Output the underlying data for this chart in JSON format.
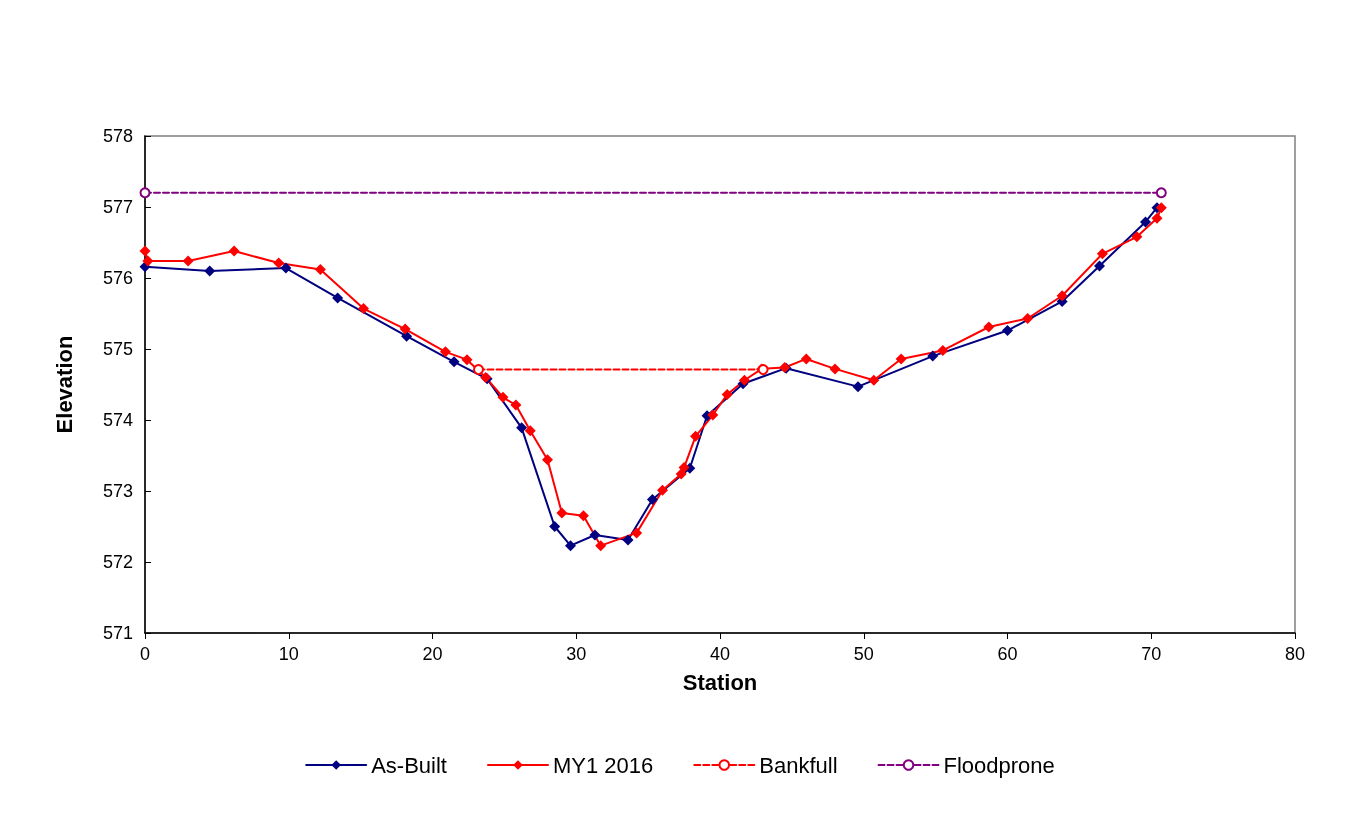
{
  "chart_data": {
    "type": "line",
    "xlabel": "Station",
    "ylabel": "Elevation",
    "xlim": [
      0,
      80
    ],
    "xticks": [
      0,
      10,
      20,
      30,
      40,
      50,
      60,
      70,
      80
    ],
    "ylim": [
      571,
      578
    ],
    "yticks": [
      571,
      572,
      573,
      574,
      575,
      576,
      577,
      578
    ],
    "grid": false,
    "legend": "bottom",
    "series": [
      {
        "name": "As-Built",
        "color": "#000080",
        "marker": "diamond",
        "line_style": "solid",
        "x": [
          0,
          4.5,
          9.8,
          13.4,
          18.2,
          21.5,
          23.8,
          26.2,
          28.5,
          29.6,
          31.3,
          33.6,
          35.3,
          37.9,
          39.1,
          41.6,
          44.6,
          49.6,
          54.8,
          60.0,
          63.8,
          66.4,
          69.6,
          70.4
        ],
        "values": [
          576.16,
          576.1,
          576.14,
          575.72,
          575.18,
          574.82,
          574.58,
          573.89,
          572.5,
          572.23,
          572.38,
          572.31,
          572.88,
          573.32,
          574.06,
          574.51,
          574.73,
          574.47,
          574.9,
          575.26,
          575.67,
          576.17,
          576.79,
          576.99
        ]
      },
      {
        "name": "MY1 2016",
        "color": "#ff0000",
        "marker": "diamond",
        "line_style": "solid",
        "x": [
          0,
          0.2,
          3.0,
          6.2,
          9.3,
          12.2,
          15.2,
          18.1,
          20.9,
          22.4,
          23.7,
          24.9,
          25.8,
          26.8,
          28.0,
          29.0,
          30.5,
          31.7,
          34.2,
          36.0,
          37.3,
          37.5,
          38.3,
          39.5,
          40.5,
          41.7,
          42.9,
          44.5,
          46.0,
          48.0,
          50.7,
          52.6,
          55.5,
          58.7,
          61.4,
          63.8,
          66.6,
          69.0,
          70.4,
          70.7
        ],
        "values": [
          576.38,
          576.24,
          576.24,
          576.38,
          576.21,
          576.12,
          575.57,
          575.28,
          574.96,
          574.85,
          574.6,
          574.32,
          574.21,
          573.85,
          573.44,
          572.69,
          572.65,
          572.23,
          572.41,
          573.01,
          573.24,
          573.33,
          573.77,
          574.07,
          574.36,
          574.56,
          574.72,
          574.74,
          574.86,
          574.72,
          574.56,
          574.86,
          574.98,
          575.31,
          575.43,
          575.75,
          576.34,
          576.58,
          576.84,
          576.99
        ]
      },
      {
        "name": "Bankfull",
        "color": "#ff0000",
        "marker": "circle",
        "line_style": "dashed",
        "x": [
          23.2,
          43.0
        ],
        "values": [
          574.71,
          574.71
        ]
      },
      {
        "name": "Floodprone",
        "color": "#800080",
        "marker": "circle",
        "line_style": "dashed",
        "x": [
          0,
          70.7
        ],
        "values": [
          577.2,
          577.2
        ]
      }
    ]
  }
}
